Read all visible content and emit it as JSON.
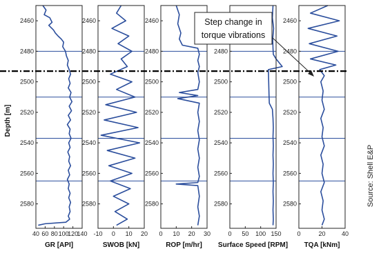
{
  "chart_data": [
    {
      "type": "line",
      "xlabel": "GR [API]",
      "ylabel": "Depth [m]",
      "xlim": [
        40,
        140
      ],
      "xticks": [
        "40",
        "60",
        "80",
        "100",
        "120",
        "140"
      ],
      "ylim": [
        2450,
        2596
      ],
      "yticks": [
        "2460",
        "2480",
        "2500",
        "2520",
        "2540",
        "2560",
        "2580"
      ],
      "series": [
        {
          "points": [
            [
              55,
              2450
            ],
            [
              62,
              2453
            ],
            [
              58,
              2456
            ],
            [
              70,
              2458
            ],
            [
              75,
              2461
            ],
            [
              68,
              2463
            ],
            [
              78,
              2466
            ],
            [
              82,
              2468
            ],
            [
              88,
              2470
            ],
            [
              95,
              2472
            ],
            [
              100,
              2474
            ],
            [
              98,
              2477
            ],
            [
              104,
              2480
            ],
            [
              106,
              2483
            ],
            [
              110,
              2486
            ],
            [
              108,
              2489
            ],
            [
              112,
              2492
            ],
            [
              115,
              2495
            ],
            [
              111,
              2498
            ],
            [
              114,
              2501
            ],
            [
              110,
              2504
            ],
            [
              116,
              2507
            ],
            [
              113,
              2510
            ],
            [
              118,
              2513
            ],
            [
              112,
              2516
            ],
            [
              117,
              2519
            ],
            [
              110,
              2522
            ],
            [
              115,
              2525
            ],
            [
              108,
              2528
            ],
            [
              114,
              2531
            ],
            [
              112,
              2534
            ],
            [
              116,
              2537
            ],
            [
              111,
              2540
            ],
            [
              114,
              2543
            ],
            [
              109,
              2546
            ],
            [
              113,
              2549
            ],
            [
              111,
              2552
            ],
            [
              115,
              2555
            ],
            [
              110,
              2558
            ],
            [
              113,
              2561
            ],
            [
              108,
              2564
            ],
            [
              112,
              2567
            ],
            [
              110,
              2570
            ],
            [
              114,
              2573
            ],
            [
              111,
              2576
            ],
            [
              115,
              2579
            ],
            [
              112,
              2582
            ],
            [
              114,
              2585
            ],
            [
              110,
              2588
            ],
            [
              113,
              2590
            ],
            [
              105,
              2592
            ],
            [
              60,
              2593
            ],
            [
              45,
              2594
            ]
          ]
        }
      ]
    },
    {
      "type": "line",
      "xlabel": "SWOB [kN]",
      "xlim": [
        -10,
        20
      ],
      "xticks": [
        "-10",
        "0",
        "10",
        "20"
      ],
      "ylim": [
        2450,
        2596
      ],
      "yticks": [
        "2460",
        "2480",
        "2500",
        "2520",
        "2540",
        "2560",
        "2580"
      ],
      "series": [
        {
          "points": [
            [
              5,
              2450
            ],
            [
              2,
              2455
            ],
            [
              8,
              2460
            ],
            [
              -1,
              2465
            ],
            [
              10,
              2470
            ],
            [
              3,
              2475
            ],
            [
              12,
              2480
            ],
            [
              5,
              2485
            ],
            [
              9,
              2490
            ],
            [
              -2,
              2495
            ],
            [
              12,
              2500
            ],
            [
              2,
              2505
            ],
            [
              14,
              2510
            ],
            [
              -5,
              2515
            ],
            [
              15,
              2520
            ],
            [
              -6,
              2525
            ],
            [
              16,
              2530
            ],
            [
              -8,
              2535
            ],
            [
              17,
              2540
            ],
            [
              -4,
              2545
            ],
            [
              14,
              2550
            ],
            [
              -3,
              2555
            ],
            [
              12,
              2560
            ],
            [
              -2,
              2565
            ],
            [
              11,
              2570
            ],
            [
              0,
              2575
            ],
            [
              10,
              2580
            ],
            [
              1,
              2585
            ],
            [
              9,
              2590
            ],
            [
              2,
              2594
            ]
          ]
        }
      ]
    },
    {
      "type": "line",
      "xlabel": "ROP [m/hr]",
      "xlim": [
        0,
        30
      ],
      "xticks": [
        "0",
        "10",
        "20",
        "30"
      ],
      "ylim": [
        2450,
        2596
      ],
      "yticks": [
        "2460",
        "2480",
        "2500",
        "2520",
        "2540",
        "2560",
        "2580"
      ],
      "series": [
        {
          "points": [
            [
              10,
              2450
            ],
            [
              12,
              2456
            ],
            [
              11,
              2462
            ],
            [
              13,
              2468
            ],
            [
              12,
              2472
            ],
            [
              14,
              2476
            ],
            [
              24,
              2478
            ],
            [
              25,
              2482
            ],
            [
              24,
              2486
            ],
            [
              25,
              2490
            ],
            [
              24,
              2494
            ],
            [
              25,
              2500
            ],
            [
              24,
              2505
            ],
            [
              12,
              2507
            ],
            [
              24,
              2509
            ],
            [
              11,
              2511
            ],
            [
              25,
              2514
            ],
            [
              24,
              2520
            ],
            [
              25,
              2526
            ],
            [
              24,
              2532
            ],
            [
              25,
              2538
            ],
            [
              24,
              2544
            ],
            [
              25,
              2550
            ],
            [
              24,
              2556
            ],
            [
              25,
              2562
            ],
            [
              24,
              2566
            ],
            [
              10,
              2567
            ],
            [
              24,
              2568
            ],
            [
              25,
              2575
            ],
            [
              24,
              2582
            ],
            [
              25,
              2588
            ],
            [
              24,
              2594
            ]
          ]
        }
      ]
    },
    {
      "type": "line",
      "xlabel": "Surface Speed [RPM]",
      "xlim": [
        0,
        150
      ],
      "xticks": [
        "0",
        "50",
        "100",
        "150"
      ],
      "ylim": [
        2450,
        2596
      ],
      "yticks": [
        "2460",
        "2480",
        "2500",
        "2520",
        "2540",
        "2560",
        "2580"
      ],
      "series": [
        {
          "points": [
            [
              140,
              2450
            ],
            [
              138,
              2458
            ],
            [
              142,
              2465
            ],
            [
              139,
              2472
            ],
            [
              140,
              2478
            ],
            [
              141,
              2482
            ],
            [
              150,
              2485
            ],
            [
              170,
              2490
            ],
            [
              125,
              2492
            ],
            [
              126,
              2500
            ],
            [
              127,
              2508
            ],
            [
              128,
              2514
            ],
            [
              138,
              2518
            ],
            [
              140,
              2524
            ],
            [
              141,
              2530
            ],
            [
              140,
              2536
            ],
            [
              141,
              2542
            ],
            [
              140,
              2548
            ],
            [
              141,
              2554
            ],
            [
              140,
              2560
            ],
            [
              141,
              2566
            ],
            [
              140,
              2572
            ],
            [
              141,
              2578
            ],
            [
              140,
              2584
            ],
            [
              141,
              2590
            ],
            [
              140,
              2594
            ]
          ]
        }
      ]
    },
    {
      "type": "line",
      "xlabel": "TQA [kNm]",
      "xlim": [
        0,
        40
      ],
      "xticks": [
        "0",
        "20",
        "40"
      ],
      "ylim": [
        2450,
        2596
      ],
      "yticks": [
        "2460",
        "2480",
        "2500",
        "2520",
        "2540",
        "2560",
        "2580"
      ],
      "series": [
        {
          "points": [
            [
              25,
              2450
            ],
            [
              10,
              2455
            ],
            [
              35,
              2460
            ],
            [
              8,
              2465
            ],
            [
              33,
              2470
            ],
            [
              9,
              2475
            ],
            [
              34,
              2480
            ],
            [
              10,
              2485
            ],
            [
              32,
              2489
            ],
            [
              18,
              2492
            ],
            [
              22,
              2496
            ],
            [
              19,
              2500
            ],
            [
              21,
              2506
            ],
            [
              20,
              2512
            ],
            [
              22,
              2518
            ],
            [
              19,
              2524
            ],
            [
              21,
              2530
            ],
            [
              20,
              2536
            ],
            [
              22,
              2542
            ],
            [
              19,
              2548
            ],
            [
              21,
              2554
            ],
            [
              20,
              2560
            ],
            [
              22,
              2566
            ],
            [
              19,
              2572
            ],
            [
              21,
              2578
            ],
            [
              20,
              2584
            ],
            [
              22,
              2590
            ],
            [
              20,
              2594
            ]
          ]
        }
      ]
    }
  ],
  "annotation": {
    "line1": "Step change in",
    "line2": "torque vibrations"
  },
  "source_note": "Source: Shell E&P",
  "marker_depth": 2493,
  "flat_depths": [
    2480,
    2510,
    2537,
    2565
  ],
  "colors": {
    "trace": "#2a4d9c",
    "marker": "#000000",
    "frame": "#222222"
  }
}
